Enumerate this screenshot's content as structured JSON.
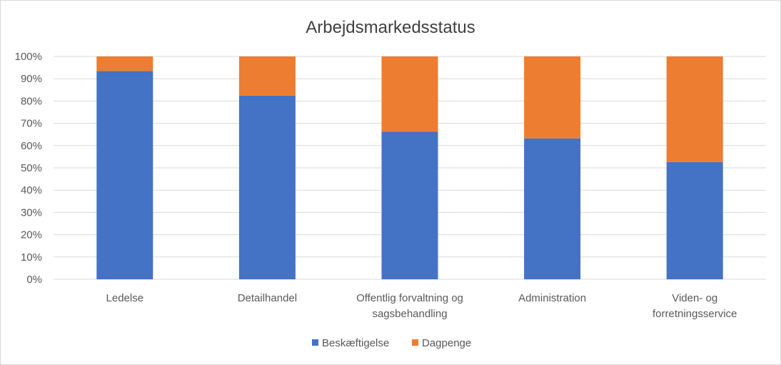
{
  "chart_data": {
    "type": "bar",
    "stacked": true,
    "title": "Arbejdsmarkedsstatus",
    "categories": [
      [
        "Ledelse"
      ],
      [
        "Detailhandel"
      ],
      [
        "Offentlig forvaltning og",
        "sagsbehandling"
      ],
      [
        "Administration"
      ],
      [
        "Viden- og",
        "forretningsservice"
      ]
    ],
    "series": [
      {
        "name": "Beskæftigelse",
        "color": "#4472c4",
        "values": [
          0.935,
          0.824,
          0.662,
          0.632,
          0.526
        ]
      },
      {
        "name": "Dagpenge",
        "color": "#ed7d31",
        "values": [
          0.065,
          0.176,
          0.338,
          0.368,
          0.474
        ]
      }
    ],
    "y_ticks": [
      "0%",
      "10%",
      "20%",
      "30%",
      "40%",
      "50%",
      "60%",
      "70%",
      "80%",
      "90%",
      "100%"
    ],
    "ylim": [
      0,
      1
    ],
    "grid": true,
    "legend_position": "bottom",
    "gridline_color": "#d9d9d9"
  }
}
